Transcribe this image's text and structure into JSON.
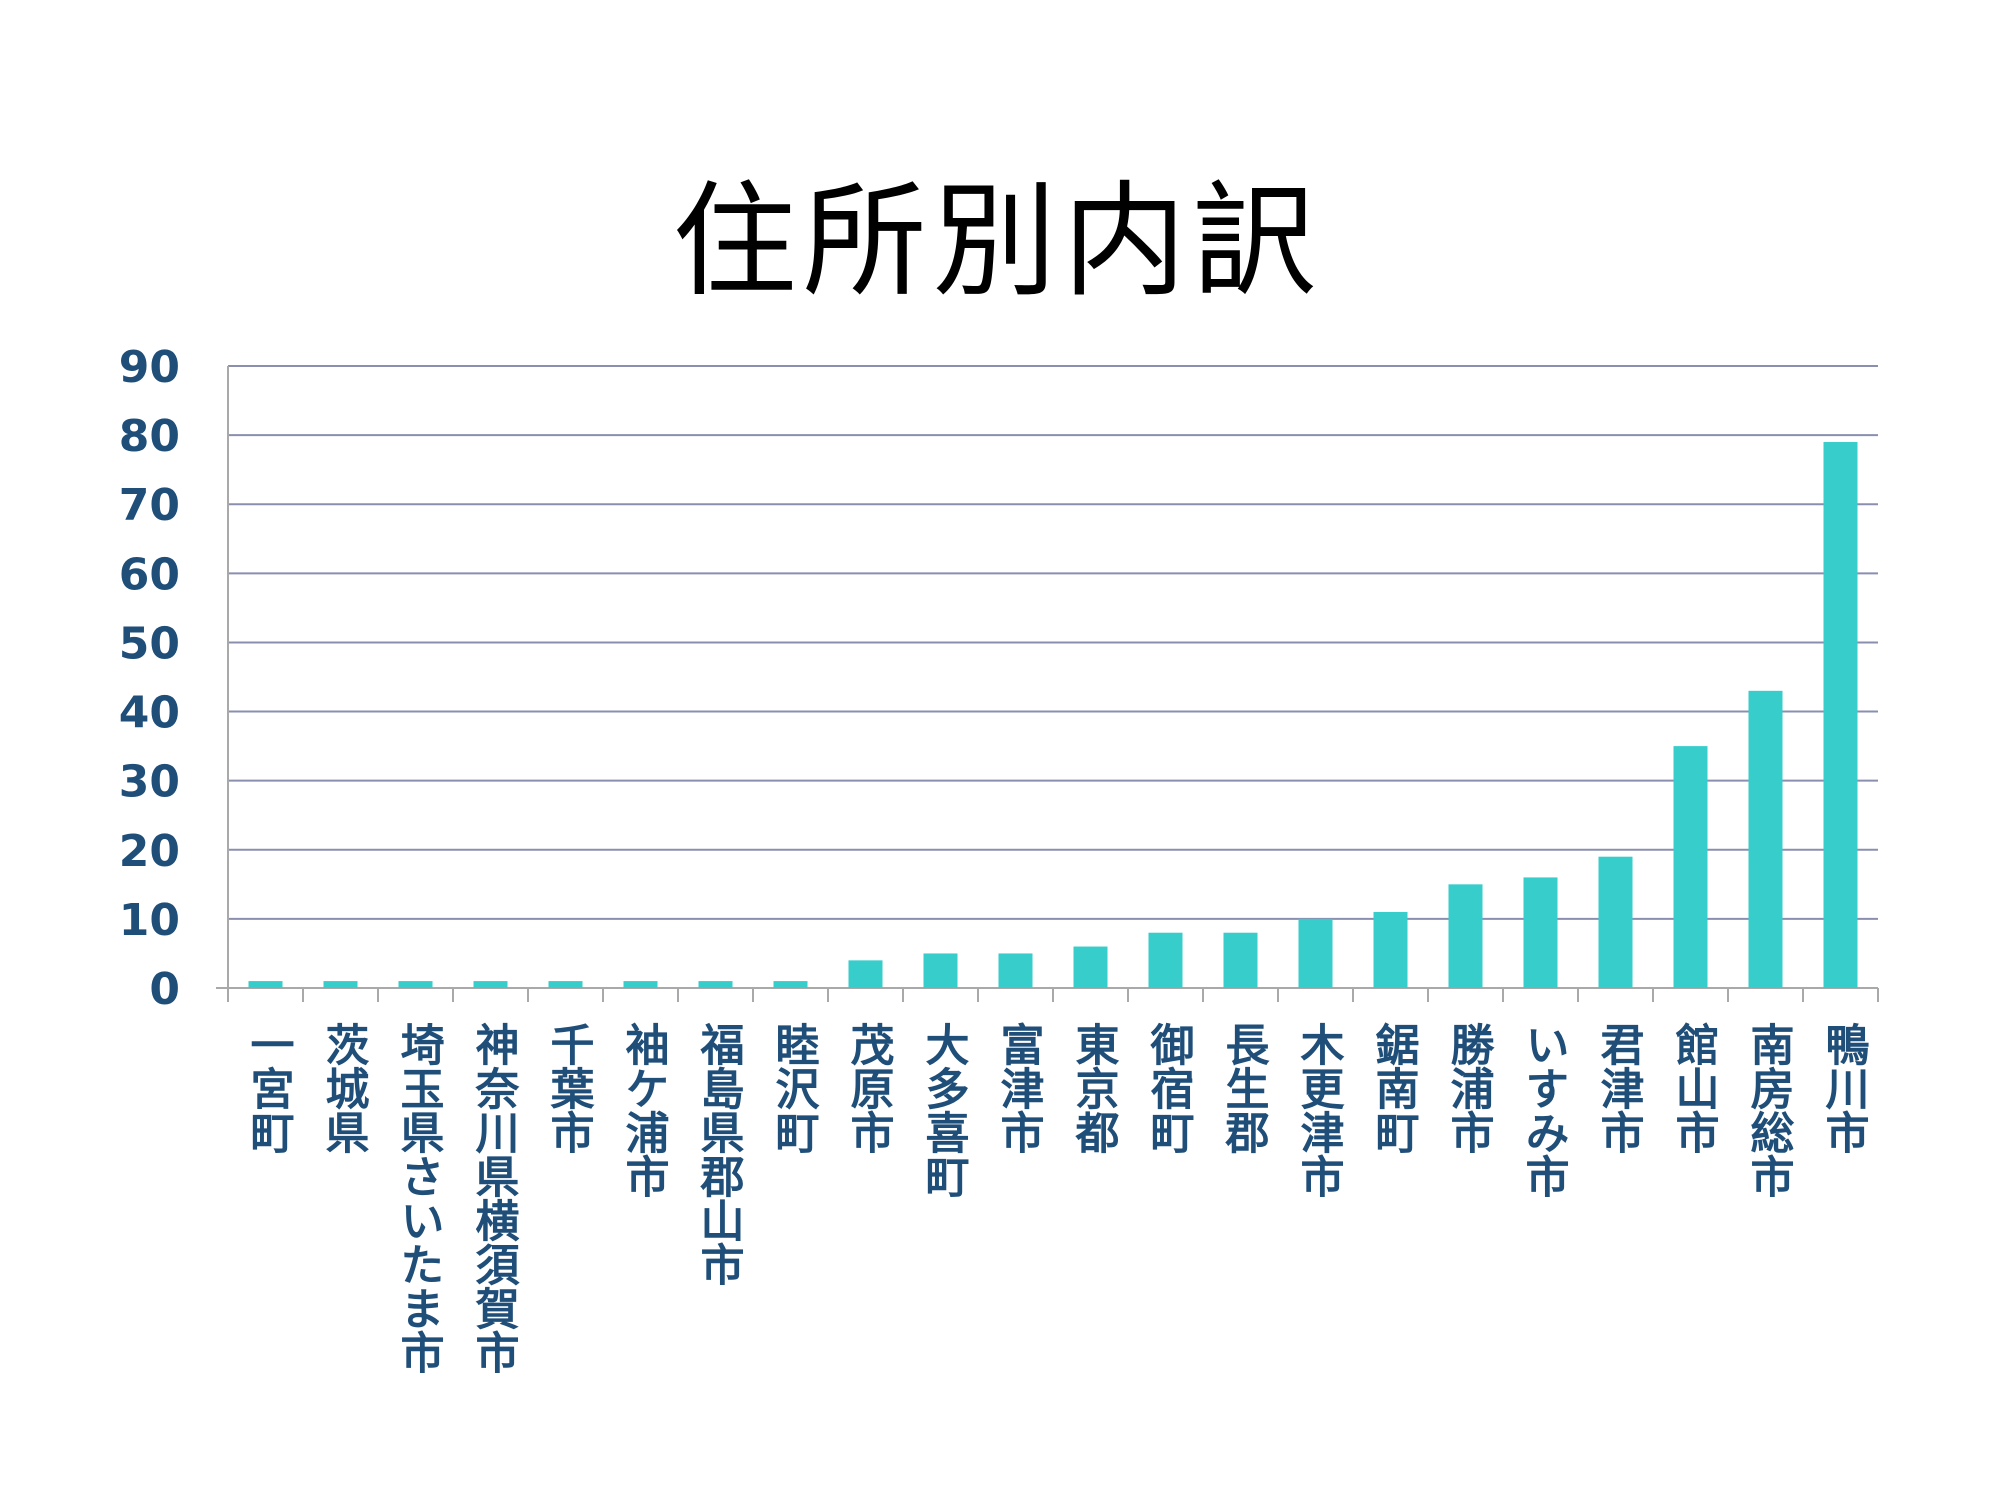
{
  "title": "住所別内訳",
  "colors": {
    "bar": "#37CDCB",
    "grid": "#8A8FB0",
    "tick_text": "#1F4E79",
    "axis": "#A9A9A9"
  },
  "chart_data": {
    "type": "bar",
    "title": "住所別内訳",
    "xlabel": "",
    "ylabel": "",
    "ylim": [
      0,
      90
    ],
    "yticks": [
      0,
      10,
      20,
      30,
      40,
      50,
      60,
      70,
      80,
      90
    ],
    "grid": true,
    "categories": [
      "一宮町",
      "茨城県",
      "埼玉県さいたま市",
      "神奈川県横須賀市",
      "千葉市",
      "袖ケ浦市",
      "福島県郡山市",
      "睦沢町",
      "茂原市",
      "大多喜町",
      "富津市",
      "東京都",
      "御宿町",
      "長生郡",
      "木更津市",
      "鋸南町",
      "勝浦市",
      "いすみ市",
      "君津市",
      "館山市",
      "南房総市",
      "鴨川市"
    ],
    "values": [
      1,
      1,
      1,
      1,
      1,
      1,
      1,
      1,
      4,
      5,
      5,
      6,
      8,
      8,
      10,
      11,
      15,
      16,
      19,
      35,
      43,
      79
    ]
  }
}
